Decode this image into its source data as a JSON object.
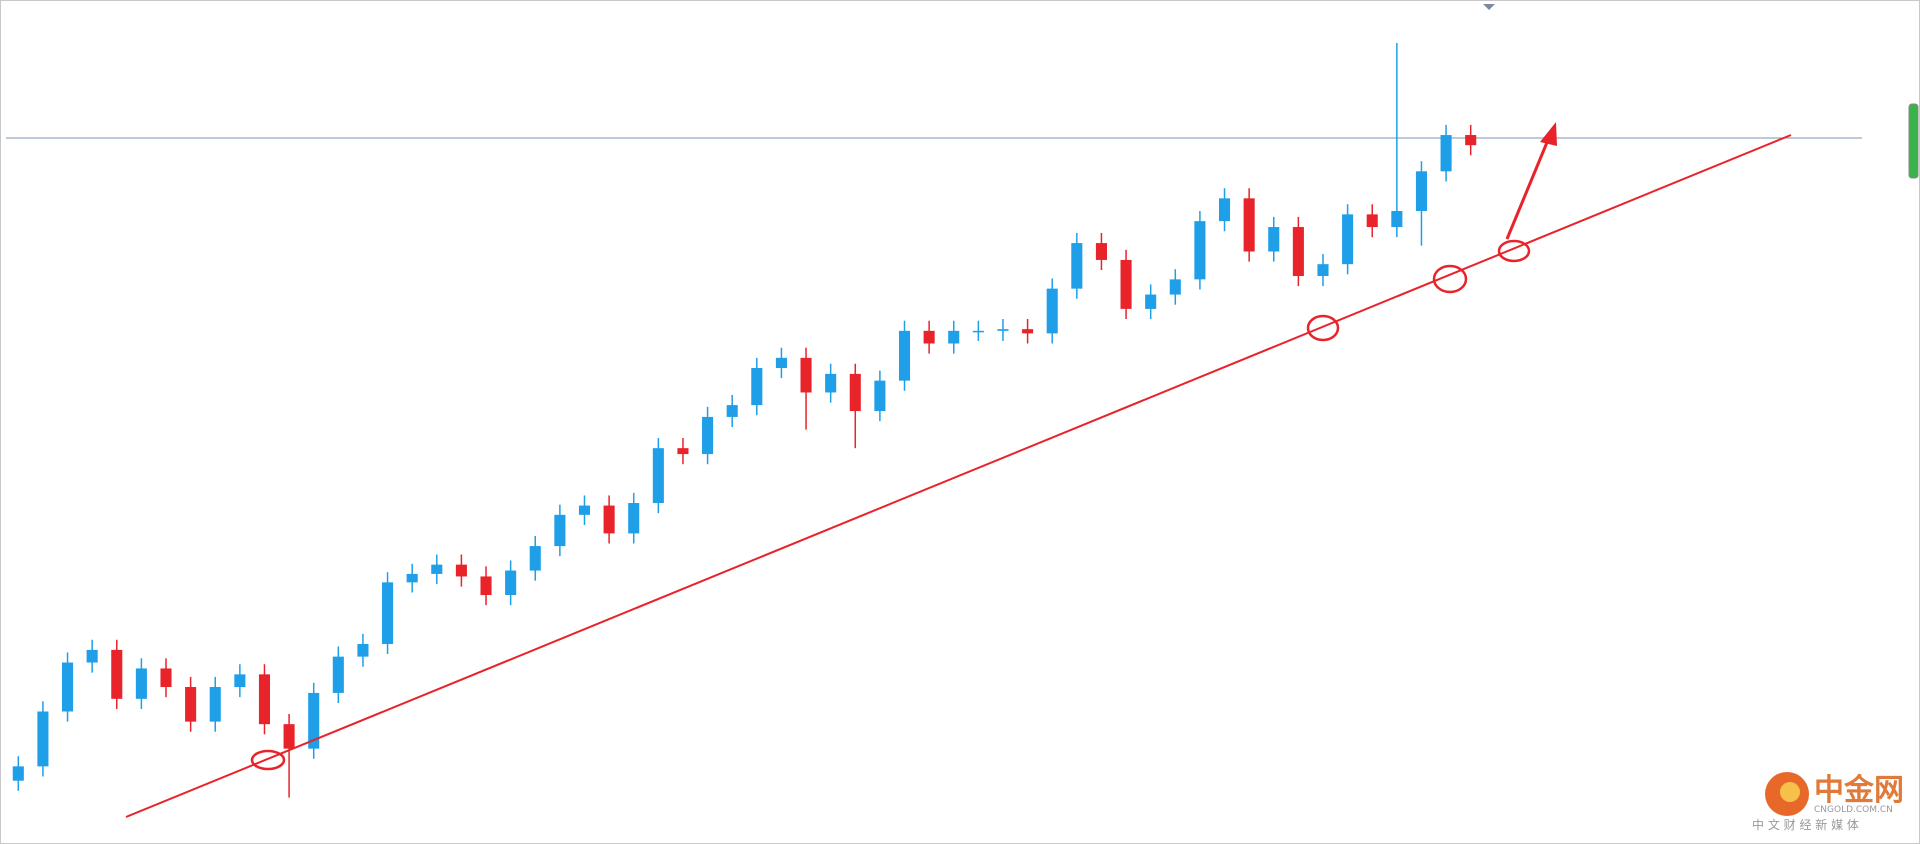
{
  "chart_data": {
    "type": "candlestick",
    "open": [
      7.5,
      9.2,
      15.7,
      21.5,
      23.0,
      17.2,
      20.8,
      18.6,
      14.5,
      18.6,
      20.1,
      14.2,
      11.3,
      17.9,
      22.2,
      23.7,
      31.0,
      32.0,
      33.1,
      31.7,
      29.5,
      32.4,
      35.3,
      39.0,
      40.1,
      36.8,
      40.4,
      46.9,
      46.2,
      50.6,
      52.0,
      56.4,
      57.6,
      53.5,
      55.7,
      51.3,
      54.9,
      60.8,
      59.3,
      60.8,
      60.8,
      61.0,
      60.5,
      65.8,
      71.2,
      69.2,
      63.4,
      65.1,
      66.9,
      73.8,
      76.5,
      70.2,
      73.1,
      67.3,
      68.7,
      74.6,
      73.1,
      75.0,
      79.7,
      84.0
    ],
    "high": [
      10.4,
      16.9,
      22.7,
      24.2,
      24.2,
      22.0,
      22.0,
      19.8,
      19.8,
      21.3,
      21.3,
      15.4,
      19.1,
      23.4,
      24.9,
      32.2,
      33.2,
      34.3,
      34.3,
      32.9,
      33.6,
      36.5,
      40.2,
      41.3,
      41.3,
      41.6,
      48.1,
      48.1,
      51.8,
      53.2,
      57.6,
      58.8,
      58.8,
      56.9,
      56.9,
      56.1,
      62.0,
      62.0,
      62.0,
      62.0,
      62.2,
      62.2,
      67.0,
      72.4,
      72.4,
      70.4,
      66.3,
      68.1,
      75.0,
      77.7,
      77.7,
      74.3,
      74.3,
      69.9,
      75.8,
      75.8,
      94.9,
      80.9,
      85.2,
      85.2
    ],
    "low": [
      6.3,
      8.0,
      14.5,
      20.3,
      16.0,
      16.0,
      17.4,
      13.3,
      13.3,
      17.4,
      13.0,
      5.5,
      10.1,
      16.7,
      21.0,
      22.5,
      29.8,
      30.8,
      30.5,
      28.3,
      28.3,
      31.2,
      34.1,
      37.8,
      35.6,
      35.6,
      39.2,
      45.0,
      45.0,
      49.4,
      50.8,
      55.2,
      49.1,
      52.3,
      46.9,
      50.1,
      53.7,
      58.1,
      58.1,
      59.6,
      59.6,
      59.3,
      59.3,
      64.6,
      68.0,
      62.2,
      62.2,
      63.9,
      65.7,
      72.6,
      69.0,
      69.0,
      66.1,
      66.1,
      67.5,
      71.9,
      71.9,
      70.9,
      78.5,
      81.6
    ],
    "close": [
      9.2,
      15.7,
      21.5,
      23.0,
      17.2,
      20.8,
      18.6,
      14.5,
      18.6,
      20.1,
      14.2,
      11.3,
      17.9,
      22.2,
      23.7,
      31.0,
      32.0,
      33.1,
      31.7,
      29.5,
      32.4,
      35.3,
      39.0,
      40.1,
      36.8,
      40.4,
      46.9,
      46.2,
      50.6,
      52.0,
      56.4,
      57.6,
      53.5,
      55.7,
      51.3,
      54.9,
      60.8,
      59.3,
      60.8,
      60.8,
      61.0,
      60.5,
      65.8,
      71.2,
      69.2,
      63.4,
      65.1,
      66.9,
      73.8,
      76.5,
      70.2,
      73.1,
      67.3,
      68.7,
      74.6,
      73.1,
      75.0,
      79.7,
      84.0,
      82.8
    ],
    "up_color": "#1e9fe8",
    "down_color": "#e8232a",
    "ylim": [
      0,
      100
    ],
    "grid": false
  },
  "watermark": {
    "brand": "中金网",
    "site": "CNGOLD.COM.CN",
    "tagline": "中 文 财 经 新 媒 体"
  }
}
